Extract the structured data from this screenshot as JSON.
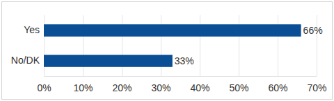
{
  "chart_data": {
    "type": "bar",
    "orientation": "horizontal",
    "categories": [
      "Yes",
      "No/DK"
    ],
    "values": [
      66,
      33
    ],
    "value_labels": [
      "66%",
      "33%"
    ],
    "color": "#0a4f96",
    "xlim": [
      0,
      70
    ],
    "xticks": [
      {
        "value": 0,
        "label": "0%"
      },
      {
        "value": 10,
        "label": "10%"
      },
      {
        "value": 20,
        "label": "20%"
      },
      {
        "value": 30,
        "label": "30%"
      },
      {
        "value": 40,
        "label": "40%"
      },
      {
        "value": 50,
        "label": "50%"
      },
      {
        "value": 60,
        "label": "60%"
      },
      {
        "value": 70,
        "label": "70%"
      }
    ],
    "grid": true,
    "data_labels": true
  }
}
